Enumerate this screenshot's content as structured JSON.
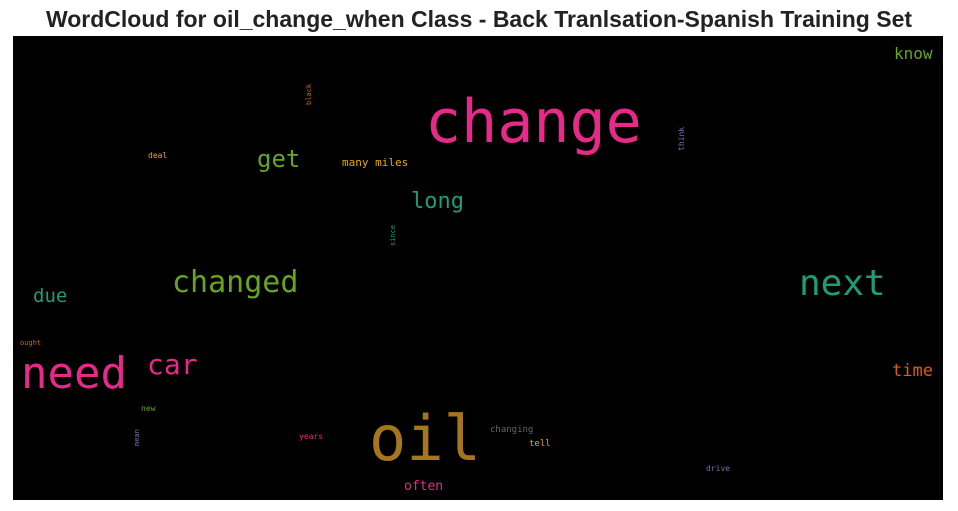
{
  "title": "WordCloud for oil_change_when Class - Back Tranlsation-Spanish Training Set",
  "words": [
    {
      "text": "change",
      "color": "#e7298a",
      "weight": 60
    },
    {
      "text": "oil",
      "color": "#a6761d",
      "weight": 62
    },
    {
      "text": "need",
      "color": "#e7298a",
      "weight": 44
    },
    {
      "text": "next",
      "color": "#1b9e77",
      "weight": 36
    },
    {
      "text": "changed",
      "color": "#66a61e",
      "weight": 30
    },
    {
      "text": "car",
      "color": "#e7298a",
      "weight": 28
    },
    {
      "text": "get",
      "color": "#66a61e",
      "weight": 24
    },
    {
      "text": "long",
      "color": "#1b9e77",
      "weight": 22
    },
    {
      "text": "due",
      "color": "#1b9e77",
      "weight": 19
    },
    {
      "text": "know",
      "color": "#66a61e",
      "weight": 16
    },
    {
      "text": "time",
      "color": "#d95f02",
      "weight": 17
    },
    {
      "text": "often",
      "color": "#e7298a",
      "weight": 13
    },
    {
      "text": "many miles",
      "color": "#e6ab02",
      "weight": 11
    },
    {
      "text": "changing",
      "color": "#666666",
      "weight": 9
    },
    {
      "text": "tell",
      "color": "#e6ab02",
      "weight": 9
    },
    {
      "text": "years",
      "color": "#e7298a",
      "weight": 8
    },
    {
      "text": "drive",
      "color": "#7570b3",
      "weight": 8
    },
    {
      "text": "deal",
      "color": "#e6ab02",
      "weight": 8
    },
    {
      "text": "new",
      "color": "#66a61e",
      "weight": 8
    },
    {
      "text": "ought",
      "color": "#d95f02",
      "weight": 7
    },
    {
      "text": "black",
      "color": "#d95f02",
      "weight": 7
    },
    {
      "text": "think",
      "color": "#7570b3",
      "weight": 8
    },
    {
      "text": "since",
      "color": "#1b9e77",
      "weight": 7
    },
    {
      "text": "mean",
      "color": "#7570b3",
      "weight": 7
    }
  ]
}
